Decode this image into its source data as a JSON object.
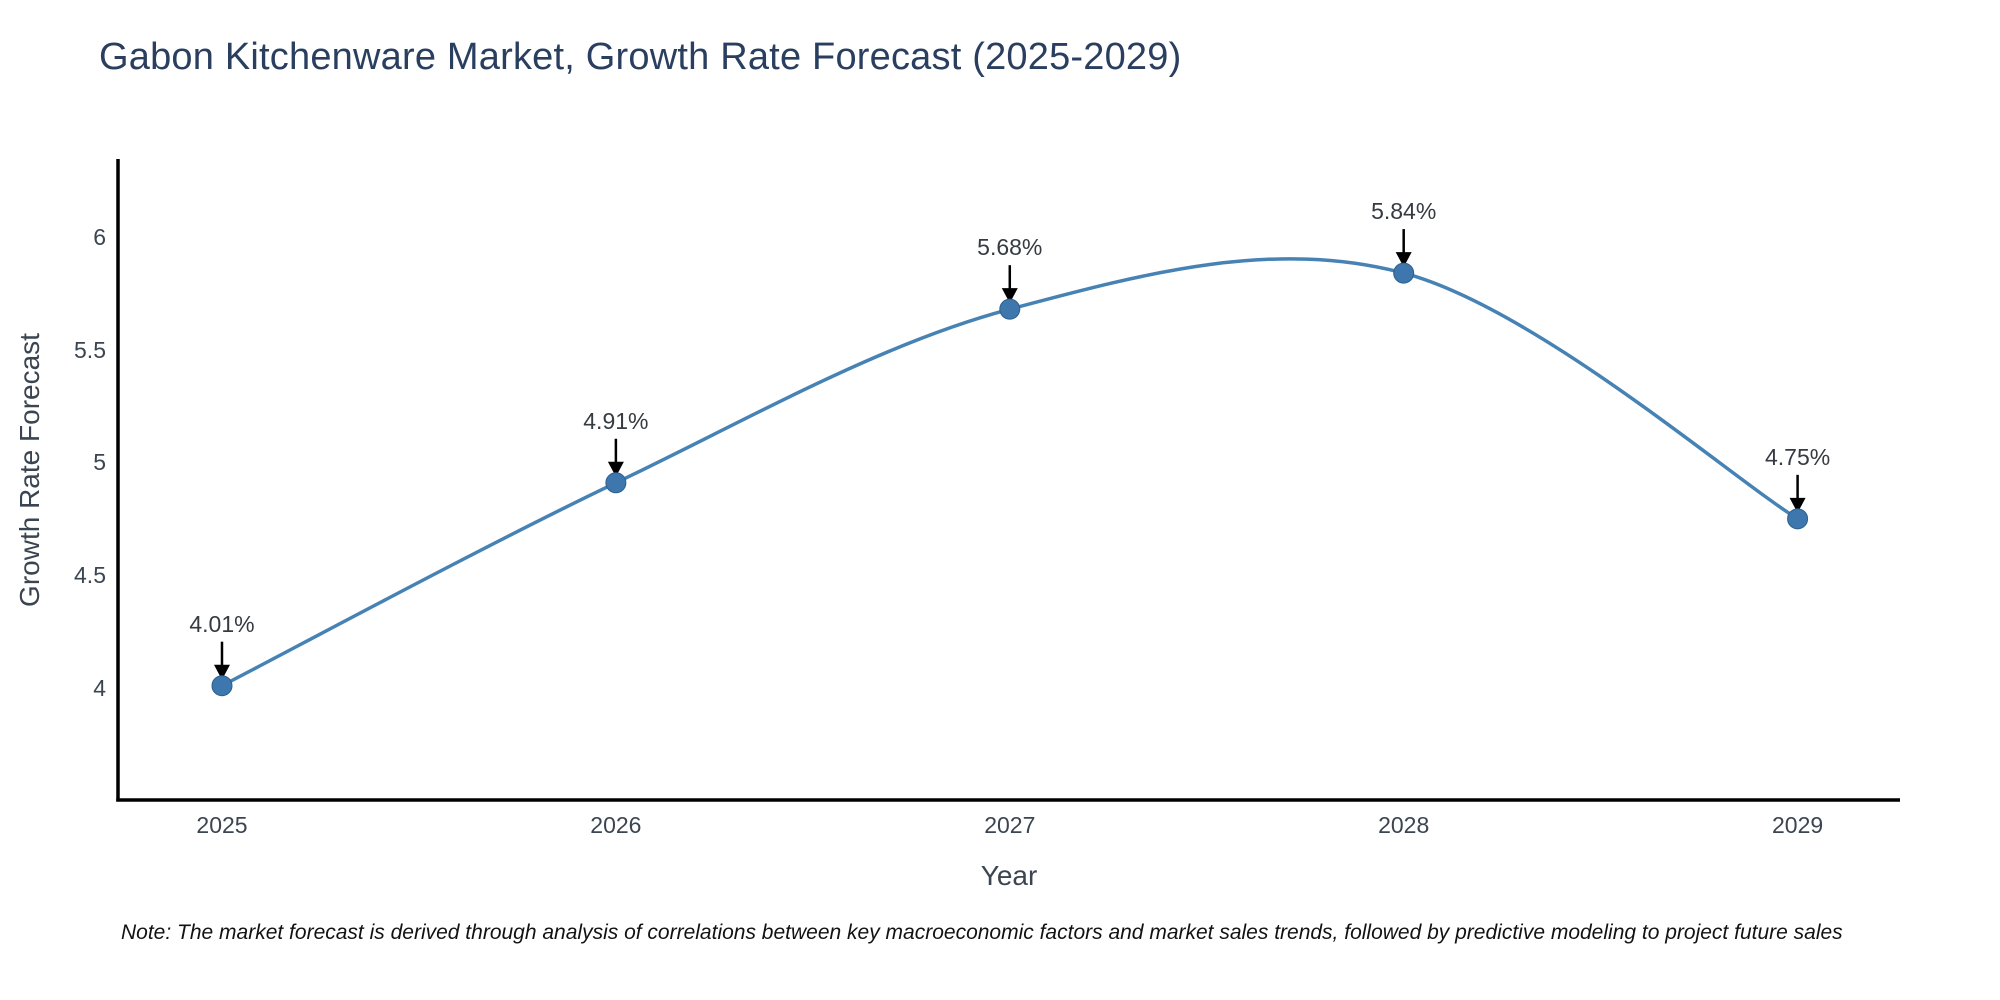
{
  "title": "Gabon Kitchenware Market, Growth Rate Forecast (2025-2029)",
  "note": "Note: The market forecast is derived through analysis of correlations between key macroeconomic factors and market sales trends, followed by predictive modeling to project future sales",
  "colors": {
    "line": "#4682b4",
    "marker_fill": "#3d77ad",
    "marker_edge": "#2e5f8d",
    "axis": "#000000",
    "arrow": "#000000",
    "title_text": "#2a3f5f",
    "tick_text": "#3b4552",
    "annotation_text": "#363b42",
    "note_text": "#121212"
  },
  "chart_data": {
    "type": "line",
    "title": "Gabon Kitchenware Market, Growth Rate Forecast (2025-2029)",
    "xlabel": "Year",
    "ylabel": "Growth Rate Forecast",
    "x": [
      2025,
      2026,
      2027,
      2028,
      2029
    ],
    "series": [
      {
        "name": "Growth Rate Forecast",
        "values": [
          4.01,
          4.91,
          5.68,
          5.84,
          4.75
        ]
      }
    ],
    "point_labels": [
      "4.01%",
      "4.91%",
      "5.68%",
      "5.84%",
      "4.75%"
    ],
    "xtick_labels": [
      "2025",
      "2026",
      "2027",
      "2028",
      "2029"
    ],
    "ytick_labels": [
      "4",
      "4.5",
      "5",
      "5.5",
      "6"
    ],
    "ytick_values": [
      4,
      4.5,
      5,
      5.5,
      6
    ],
    "xlim": [
      2024.736,
      2029.26
    ],
    "ylim": [
      3.503,
      6.346
    ],
    "line_shape": "spline",
    "grid": false,
    "legend": "none",
    "annotations": "arrow-to-point"
  }
}
